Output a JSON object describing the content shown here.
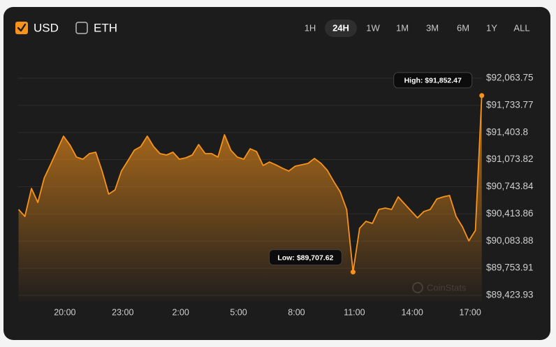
{
  "currency_toggles": [
    {
      "label": "USD",
      "checked": true
    },
    {
      "label": "ETH",
      "checked": false
    }
  ],
  "ranges": [
    "1H",
    "24H",
    "1W",
    "1M",
    "3M",
    "6M",
    "1Y",
    "ALL"
  ],
  "selected_range": "24H",
  "watermark": "CoinStats",
  "chart_data": {
    "type": "line",
    "color": "#f7931a",
    "grid": true,
    "annotations": {
      "low": "Low: $89,707.62",
      "high": "High: $91,852.47"
    },
    "x": [
      17.6,
      17.93,
      18.27,
      18.6,
      18.93,
      19.27,
      19.6,
      19.93,
      20.27,
      20.6,
      20.93,
      21.27,
      21.6,
      21.93,
      22.27,
      22.6,
      22.93,
      23.27,
      23.6,
      23.93,
      24.27,
      24.6,
      24.93,
      25.27,
      25.6,
      25.93,
      26.27,
      26.6,
      26.93,
      27.27,
      27.6,
      27.93,
      28.27,
      28.6,
      28.93,
      29.27,
      29.6,
      29.93,
      30.27,
      30.6,
      30.93,
      31.27,
      31.6,
      31.93,
      32.27,
      32.6,
      32.93,
      33.27,
      33.6,
      33.93,
      34.27,
      34.6,
      34.93,
      35.27,
      35.6,
      35.93,
      36.27,
      36.6,
      36.93,
      37.27,
      37.6,
      37.93,
      38.27,
      38.6,
      38.93,
      39.27,
      39.6,
      39.93,
      40.27,
      40.6,
      40.93,
      41.27,
      41.6
    ],
    "values": [
      90468,
      90383,
      90723,
      90553,
      90850,
      91020,
      91189,
      91359,
      91249,
      91105,
      91079,
      91147,
      91164,
      90935,
      90655,
      90706,
      90935,
      91062,
      91189,
      91232,
      91359,
      91232,
      91147,
      91130,
      91164,
      91079,
      91096,
      91130,
      91257,
      91147,
      91147,
      91105,
      91376,
      91189,
      91105,
      91079,
      91206,
      91172,
      91003,
      91045,
      91011,
      90969,
      90935,
      90994,
      91011,
      91028,
      91088,
      91028,
      90943,
      90808,
      90680,
      90468,
      89707.62,
      90239,
      90324,
      90298,
      90468,
      90485,
      90468,
      90621,
      90536,
      90451,
      90366,
      90443,
      90468,
      90595,
      90621,
      90638,
      90383,
      90256,
      90086,
      90213,
      91852.47
    ],
    "xlim": [
      17.58,
      41.61
    ],
    "xticks": [
      {
        "value": 20,
        "label": "20:00"
      },
      {
        "value": 23,
        "label": "23:00"
      },
      {
        "value": 26,
        "label": "2:00"
      },
      {
        "value": 29,
        "label": "5:00"
      },
      {
        "value": 32,
        "label": "8:00"
      },
      {
        "value": 35,
        "label": "11:00"
      },
      {
        "value": 38,
        "label": "14:00"
      },
      {
        "value": 41,
        "label": "17:00"
      }
    ],
    "ylim": [
      89423.93,
      92063.75
    ],
    "yticks": [
      {
        "value": 92063.75,
        "label": "$92,063.75"
      },
      {
        "value": 91733.77,
        "label": "$91,733.77"
      },
      {
        "value": 91403.8,
        "label": "$91,403.8"
      },
      {
        "value": 91073.82,
        "label": "$91,073.82"
      },
      {
        "value": 90743.84,
        "label": "$90,743.84"
      },
      {
        "value": 90413.86,
        "label": "$90,413.86"
      },
      {
        "value": 90083.88,
        "label": "$90,083.88"
      },
      {
        "value": 89753.91,
        "label": "$89,753.91"
      },
      {
        "value": 89423.93,
        "label": "$89,423.93"
      }
    ]
  }
}
